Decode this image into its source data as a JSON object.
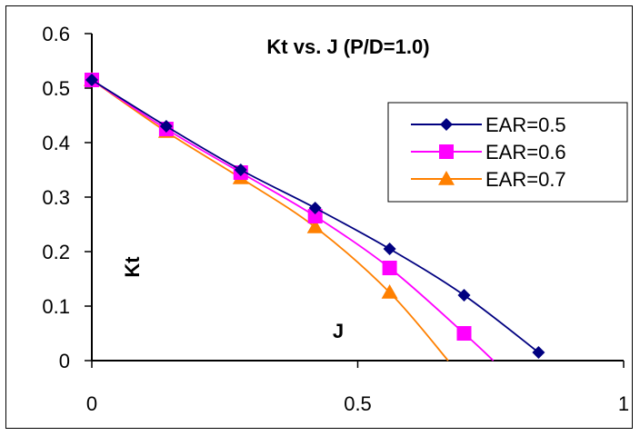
{
  "chart_data": {
    "type": "line",
    "title": "Kt vs. J (P/D=1.0)",
    "xlabel": "J",
    "ylabel": "Kt",
    "xlim": [
      0,
      1
    ],
    "ylim": [
      0,
      0.6
    ],
    "x_ticks": [
      "0",
      "0.5",
      "1"
    ],
    "y_ticks": [
      "0",
      "0.1",
      "0.2",
      "0.3",
      "0.4",
      "0.5",
      "0.6"
    ],
    "grid": false,
    "legend_position": "right",
    "series": [
      {
        "name": "EAR=0.5",
        "color": "#000080",
        "marker": "diamond",
        "points": [
          [
            0,
            0.515
          ],
          [
            0.14,
            0.43
          ],
          [
            0.28,
            0.35
          ],
          [
            0.42,
            0.28
          ],
          [
            0.56,
            0.205
          ],
          [
            0.7,
            0.12
          ],
          [
            0.84,
            0.015
          ]
        ]
      },
      {
        "name": "EAR=0.6",
        "color": "#ff00ff",
        "marker": "square",
        "points": [
          [
            0,
            0.515
          ],
          [
            0.14,
            0.425
          ],
          [
            0.28,
            0.345
          ],
          [
            0.42,
            0.265
          ],
          [
            0.56,
            0.17
          ],
          [
            0.7,
            0.05
          ]
        ],
        "curve_end": [
          0.755,
          0
        ]
      },
      {
        "name": "EAR=0.7",
        "color": "#ff8000",
        "marker": "triangle",
        "points": [
          [
            0,
            0.515
          ],
          [
            0.14,
            0.42
          ],
          [
            0.28,
            0.335
          ],
          [
            0.42,
            0.245
          ],
          [
            0.56,
            0.125
          ]
        ],
        "curve_end": [
          0.67,
          0
        ]
      }
    ]
  }
}
